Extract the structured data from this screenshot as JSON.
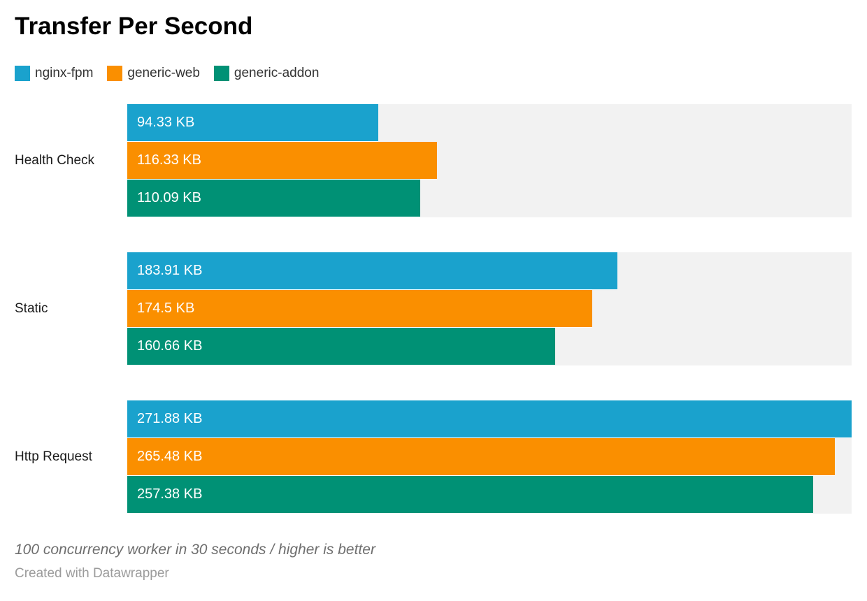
{
  "header": {
    "title": "Transfer Per Second"
  },
  "legend": {
    "items": [
      {
        "label": "nginx-fpm",
        "color": "#1aa2cd"
      },
      {
        "label": "generic-web",
        "color": "#fa8f00"
      },
      {
        "label": "generic-addon",
        "color": "#009175"
      }
    ]
  },
  "footer": {
    "note": "100 concurrency worker in 30 seconds / higher is better",
    "attribution": "Created with Datawrapper"
  },
  "chart_data": {
    "type": "bar",
    "orientation": "horizontal",
    "title": "Transfer Per Second",
    "unit": "KB",
    "categories": [
      "Health Check",
      "Static",
      "Http Request"
    ],
    "series": [
      {
        "name": "nginx-fpm",
        "color": "#1aa2cd",
        "values": [
          94.33,
          183.91,
          271.88
        ],
        "value_labels": [
          "94.33 KB",
          "183.91 KB",
          "271.88 KB"
        ]
      },
      {
        "name": "generic-web",
        "color": "#fa8f00",
        "values": [
          116.33,
          174.5,
          265.48
        ],
        "value_labels": [
          "116.33 KB",
          "174.5 KB",
          "265.48 KB"
        ]
      },
      {
        "name": "generic-addon",
        "color": "#009175",
        "values": [
          110.09,
          160.66,
          257.38
        ],
        "value_labels": [
          "110.09 KB",
          "160.66 KB",
          "257.38 KB"
        ]
      }
    ],
    "xlim": [
      0,
      271.88
    ],
    "value_label_position": "inside-start",
    "track_color": "#f2f2f2",
    "grid": false,
    "axis_ticks": "none",
    "legend_position": "top",
    "note": "100 concurrency worker in 30 seconds / higher is better",
    "attribution": "Created with Datawrapper"
  }
}
